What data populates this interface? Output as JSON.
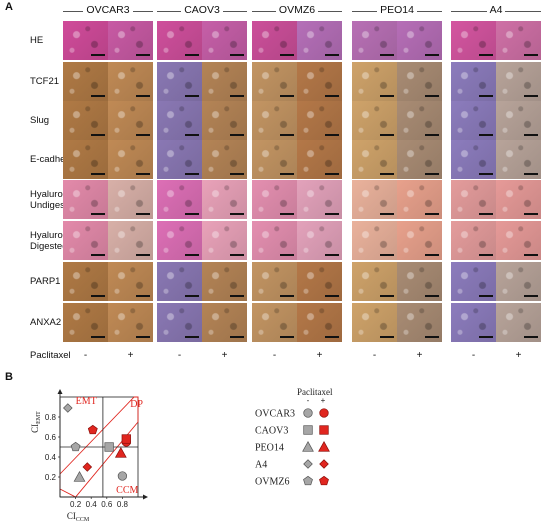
{
  "panelA": {
    "letter": "A",
    "cell_lines": [
      "OVCAR3",
      "CAOV3",
      "OVMZ6",
      "PEO14",
      "A4"
    ],
    "rows": [
      {
        "label": "HE",
        "lines": [
          "HE"
        ],
        "stain": "he"
      },
      {
        "label": "TCF21",
        "lines": [
          "TCF21"
        ],
        "stain": "dab"
      },
      {
        "label": "Slug",
        "lines": [
          "Slug"
        ],
        "stain": "dab"
      },
      {
        "label": "E-cadherin",
        "lines": [
          "E-cadherin"
        ],
        "stain": "dab"
      },
      {
        "label": "Hyaluronan Undigested",
        "lines": [
          "Hyaluronan",
          "Undigested"
        ],
        "stain": "hyal"
      },
      {
        "label": "Hyaluronan Digested",
        "lines": [
          "Hyaluronan",
          "Digested"
        ],
        "stain": "hyal"
      },
      {
        "label": "PARP1",
        "lines": [
          "PARP1"
        ],
        "stain": "dab"
      },
      {
        "label": "ANXA2",
        "lines": [
          "ANXA2"
        ],
        "stain": "dab"
      }
    ],
    "treatment_label": "Paclitaxel",
    "treatment_values": [
      "-",
      "+",
      "-",
      "+",
      "-",
      "+",
      "-",
      "+",
      "-",
      "+"
    ],
    "tile_colors": {
      "he": [
        "#d04b9a",
        "#c85aa4",
        "#cf4f9c",
        "#c65fa8",
        "#cc4f9a",
        "#b56fb8",
        "#b870b5",
        "#b66eb7",
        "#d455a0",
        "#cf70a6"
      ],
      "dab": [
        "#b07a45",
        "#c08a55",
        "#8a78b4",
        "#b48456",
        "#c39563",
        "#b47848",
        "#cfa36a",
        "#a98c74",
        "#8c7cbd",
        "#b8a49a"
      ],
      "hyal": [
        "#e38aaa",
        "#d8b0a8",
        "#dd6fb6",
        "#e9a2b9",
        "#e48fb0",
        "#e3a2bb",
        "#eab29c",
        "#e8a18c",
        "#e49c9c",
        "#e69a98"
      ]
    }
  },
  "panelB": {
    "letter": "B",
    "labels": {
      "emt": "EMT",
      "dp": "DP",
      "ccm": "CCM",
      "ylabel": "CI",
      "ylabel_sub": "EMT",
      "xlabel": "CI",
      "xlabel_sub": "CCM"
    },
    "legend_title": "Paclitaxel",
    "legend_minus": "-",
    "legend_plus": "+",
    "accent_red": "#e0261f",
    "marker_grey": "#a6a6a6"
  },
  "chart_data": {
    "type": "scatter",
    "xlabel": "CI CCM",
    "ylabel": "CI EMT",
    "xlim": [
      0,
      1
    ],
    "ylim": [
      0,
      1
    ],
    "xticks": [
      0.2,
      0.4,
      0.6,
      0.8
    ],
    "yticks": [
      0.2,
      0.4,
      0.6,
      0.8
    ],
    "reference_lines": {
      "x": 0.55,
      "y": 0.5
    },
    "regions": [
      "EMT",
      "DP",
      "CCM"
    ],
    "series": [
      {
        "name": "OVCAR3",
        "marker": "circle",
        "points": [
          {
            "treatment": "-",
            "x": 0.8,
            "y": 0.21
          },
          {
            "treatment": "+",
            "x": 0.85,
            "y": 0.55
          }
        ]
      },
      {
        "name": "CAOV3",
        "marker": "square",
        "points": [
          {
            "treatment": "-",
            "x": 0.63,
            "y": 0.5
          },
          {
            "treatment": "+",
            "x": 0.85,
            "y": 0.58
          }
        ]
      },
      {
        "name": "PEO14",
        "marker": "triangle",
        "points": [
          {
            "treatment": "-",
            "x": 0.25,
            "y": 0.2
          },
          {
            "treatment": "+",
            "x": 0.78,
            "y": 0.44
          }
        ]
      },
      {
        "name": "A4",
        "marker": "diamond",
        "points": [
          {
            "treatment": "-",
            "x": 0.1,
            "y": 0.89
          },
          {
            "treatment": "+",
            "x": 0.35,
            "y": 0.3
          }
        ]
      },
      {
        "name": "OVMZ6",
        "marker": "pentagon",
        "points": [
          {
            "treatment": "-",
            "x": 0.2,
            "y": 0.5
          },
          {
            "treatment": "+",
            "x": 0.42,
            "y": 0.67
          }
        ]
      }
    ]
  }
}
